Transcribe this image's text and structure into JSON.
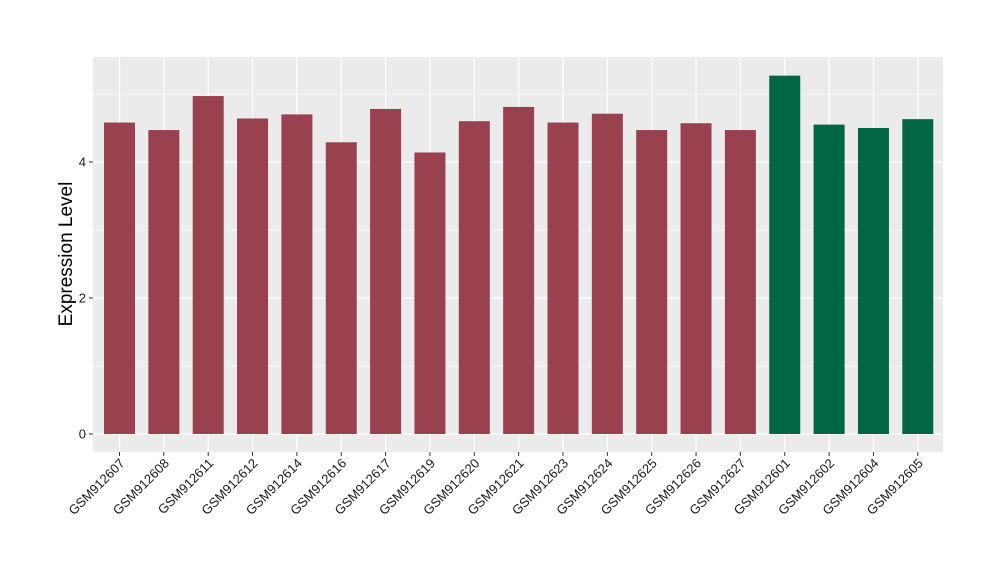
{
  "chart_data": {
    "type": "bar",
    "title": "",
    "xlabel": "",
    "ylabel": "Expression Level",
    "ylim": [
      0,
      5.5
    ],
    "yticks": [
      0,
      2,
      4
    ],
    "grid": true,
    "panel_background": "#EBEBEB",
    "grid_color": "#FFFFFF",
    "categories": [
      "GSM912607",
      "GSM912608",
      "GSM912611",
      "GSM912612",
      "GSM912614",
      "GSM912616",
      "GSM912617",
      "GSM912619",
      "GSM912620",
      "GSM912621",
      "GSM912623",
      "GSM912624",
      "GSM912625",
      "GSM912626",
      "GSM912627",
      "GSM912601",
      "GSM912602",
      "GSM912604",
      "GSM912605"
    ],
    "values": [
      4.58,
      4.47,
      4.97,
      4.64,
      4.7,
      4.29,
      4.78,
      4.14,
      4.6,
      4.81,
      4.58,
      4.71,
      4.47,
      4.57,
      4.47,
      5.27,
      4.55,
      4.5,
      4.63
    ],
    "groups": [
      "group1",
      "group1",
      "group1",
      "group1",
      "group1",
      "group1",
      "group1",
      "group1",
      "group1",
      "group1",
      "group1",
      "group1",
      "group1",
      "group1",
      "group1",
      "group2",
      "group2",
      "group2",
      "group2"
    ],
    "group_colors": {
      "group1": "#9A4150",
      "group2": "#006644"
    }
  }
}
